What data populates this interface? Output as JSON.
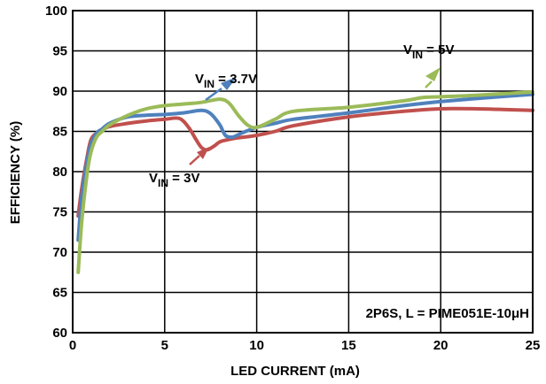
{
  "chart_data": {
    "type": "line",
    "xlabel": "LED CURRENT (mA)",
    "ylabel": "EFFICIENCY (%)",
    "xlim": [
      0,
      25
    ],
    "ylim": [
      60,
      100
    ],
    "x_ticks": [
      0,
      5,
      10,
      15,
      20,
      25
    ],
    "y_ticks": [
      60,
      65,
      70,
      75,
      80,
      85,
      90,
      95,
      100
    ],
    "grid": true,
    "series": [
      {
        "name": "VIN = 3V",
        "color": "#c0504d",
        "x": [
          0.3,
          0.5,
          0.8,
          1,
          1.3,
          1.6,
          2,
          3,
          4,
          5,
          5.8,
          6.3,
          6.7,
          7,
          7.3,
          7.7,
          8,
          8.5,
          9,
          10,
          11,
          12,
          15,
          18,
          20,
          22,
          25
        ],
        "y": [
          74.5,
          78,
          82,
          84,
          84.8,
          85.2,
          85.6,
          86,
          86.3,
          86.5,
          86.6,
          85.5,
          84,
          83,
          82.7,
          83.2,
          83.7,
          84,
          84.2,
          84.5,
          85,
          85.7,
          86.8,
          87.5,
          87.8,
          87.8,
          87.6
        ]
      },
      {
        "name": "VIN = 3.7V",
        "color": "#4f81bd",
        "x": [
          0.3,
          0.5,
          0.8,
          1,
          1.3,
          1.6,
          2,
          3,
          4,
          5,
          6,
          7,
          7.5,
          8,
          8.3,
          8.7,
          9.2,
          10,
          11,
          12,
          15,
          18,
          20,
          22,
          25
        ],
        "y": [
          71.5,
          77,
          81.5,
          83.5,
          84.8,
          85.3,
          86,
          86.8,
          87,
          87.1,
          87.3,
          87.6,
          87.2,
          85.8,
          84.5,
          84.3,
          84.8,
          85.5,
          86,
          86.5,
          87.3,
          88.2,
          88.7,
          89.1,
          89.6
        ]
      },
      {
        "name": "VIN = 5V",
        "color": "#9bbb59",
        "x": [
          0.3,
          0.5,
          0.8,
          1,
          1.3,
          1.6,
          2,
          3,
          4,
          5,
          6,
          7,
          8,
          8.5,
          9,
          9.5,
          10,
          11,
          12,
          15,
          18,
          19,
          20,
          22,
          25
        ],
        "y": [
          67.5,
          74,
          80,
          82.5,
          84.3,
          85,
          85.8,
          87,
          87.8,
          88.2,
          88.4,
          88.6,
          89,
          88.5,
          87,
          85.8,
          85.5,
          86.5,
          87.5,
          88,
          88.8,
          89.2,
          89.3,
          89.5,
          89.9
        ]
      }
    ],
    "annotations": [
      {
        "main": "V",
        "sub": "IN",
        "rest": " = 3.7V"
      },
      {
        "main": "V",
        "sub": "IN",
        "rest": " = 5V"
      },
      {
        "main": "V",
        "sub": "IN",
        "rest": " = 3V"
      },
      {
        "text": "2P6S, L = PIME051E-10μH"
      }
    ]
  }
}
